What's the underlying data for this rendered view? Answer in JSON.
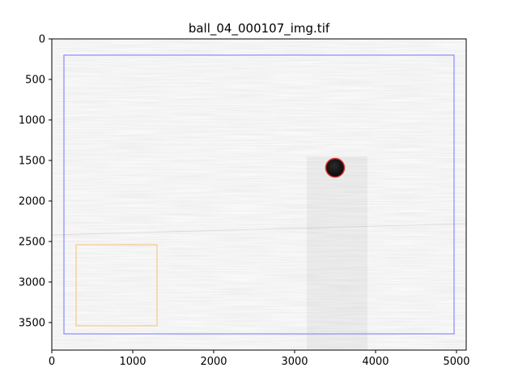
{
  "chart_data": {
    "type": "image",
    "title": "ball_04_000107_img.tif",
    "xlim": [
      0,
      5120
    ],
    "ylim": [
      3840,
      0
    ],
    "x_ticks": [
      0,
      1000,
      2000,
      3000,
      4000,
      5000
    ],
    "y_ticks": [
      0,
      500,
      1000,
      1500,
      2000,
      2500,
      3000,
      3500
    ],
    "grid": false,
    "overlays": [
      {
        "name": "outer-region",
        "kind": "rectangle",
        "color": "#8a8aff",
        "x0": 150,
        "y0": 200,
        "x1": 4970,
        "y1": 3640
      },
      {
        "name": "reference-region",
        "kind": "rectangle",
        "color": "#f5c98a",
        "x0": 300,
        "y0": 2540,
        "x1": 1300,
        "y1": 3540
      }
    ],
    "ball": {
      "cx": 3500,
      "cy": 1590,
      "r": 115,
      "fill": "#111111",
      "edge": "#e03030"
    },
    "shadow_band": {
      "x0": 3150,
      "x1": 3900,
      "y0": 1450,
      "y1": 3840
    }
  }
}
